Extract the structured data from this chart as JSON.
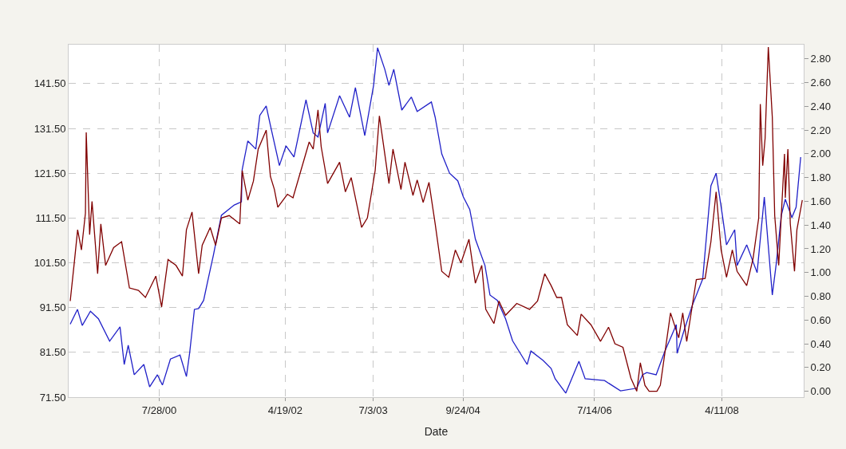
{
  "chart_data": {
    "type": "line",
    "xlabel": "Date",
    "grid": true,
    "marker": "none",
    "line_style": "solid",
    "xlim": [
      "1999-05-02",
      "2009-05-25"
    ],
    "xticks": [
      {
        "value": "2000-07-28",
        "label": "7/28/00"
      },
      {
        "value": "2002-04-19",
        "label": "4/19/02"
      },
      {
        "value": "2003-07-03",
        "label": "7/3/03"
      },
      {
        "value": "2004-09-24",
        "label": "9/24/04"
      },
      {
        "value": "2006-07-14",
        "label": "7/14/06"
      },
      {
        "value": "2008-04-11",
        "label": "4/11/08"
      }
    ],
    "ylim": [
      71.5,
      150.2
    ],
    "yticks": [
      {
        "value": 71.5,
        "label": "71.50"
      },
      {
        "value": 81.5,
        "label": "81.50"
      },
      {
        "value": 91.5,
        "label": "91.50"
      },
      {
        "value": 101.5,
        "label": "101.50"
      },
      {
        "value": 111.5,
        "label": "111.50"
      },
      {
        "value": 121.5,
        "label": "121.50"
      },
      {
        "value": 131.5,
        "label": "131.50"
      },
      {
        "value": 141.5,
        "label": "141.50"
      }
    ],
    "y2lim": [
      -0.05,
      2.92
    ],
    "y2ticks": [
      {
        "value": 0,
        "label": "0.00"
      },
      {
        "value": 0.2,
        "label": "0.20"
      },
      {
        "value": 0.4,
        "label": "0.40"
      },
      {
        "value": 0.6,
        "label": "0.60"
      },
      {
        "value": 0.8,
        "label": "0.80"
      },
      {
        "value": 1.0,
        "label": "1.00"
      },
      {
        "value": 1.2,
        "label": "1.20"
      },
      {
        "value": 1.4,
        "label": "1.40"
      },
      {
        "value": 1.6,
        "label": "1.60"
      },
      {
        "value": 1.8,
        "label": "1.80"
      },
      {
        "value": 2.0,
        "label": "2.00"
      },
      {
        "value": 2.2,
        "label": "2.20"
      },
      {
        "value": 2.4,
        "label": "2.40"
      },
      {
        "value": 2.6,
        "label": "2.60"
      },
      {
        "value": 2.8,
        "label": "2.80"
      }
    ],
    "series": [
      {
        "color": "#2020c8",
        "x": [
          "1999-05-10",
          "1999-06-15",
          "1999-07-09",
          "1999-08-19",
          "1999-09-28",
          "1999-11-23",
          "2000-01-14",
          "2000-02-04",
          "2000-02-24",
          "2000-03-25",
          "2000-05-12",
          "2000-06-10",
          "2000-07-19",
          "2000-08-13",
          "2000-09-22",
          "2000-11-09",
          "2000-12-11",
          "2000-12-27",
          "2001-01-20",
          "2001-02-10",
          "2001-03-07",
          "2001-03-27",
          "2001-04-25",
          "2001-06-04",
          "2001-08-07",
          "2001-09-12",
          "2001-09-16",
          "2001-10-14",
          "2001-11-23",
          "2001-12-13",
          "2002-01-14",
          "2002-02-04",
          "2002-03-21",
          "2002-04-23",
          "2002-06-02",
          "2002-08-01",
          "2002-09-06",
          "2002-09-30",
          "2002-11-05",
          "2002-11-17",
          "2003-01-16",
          "2003-03-07",
          "2003-04-05",
          "2003-05-22",
          "2003-07-05",
          "2003-07-25",
          "2003-08-30",
          "2003-09-20",
          "2003-10-14",
          "2003-11-23",
          "2004-01-10",
          "2004-02-08",
          "2004-04-19",
          "2004-05-08",
          "2004-06-10",
          "2004-07-19",
          "2004-08-29",
          "2004-09-26",
          "2004-10-28",
          "2004-11-25",
          "2005-01-12",
          "2005-02-06",
          "2005-03-15",
          "2005-04-25",
          "2005-05-30",
          "2005-08-11",
          "2005-08-30",
          "2005-10-30",
          "2005-12-09",
          "2005-12-29",
          "2006-02-20",
          "2006-04-27",
          "2006-05-28",
          "2006-09-02",
          "2006-11-21",
          "2007-02-10",
          "2007-03-11",
          "2007-04-01",
          "2007-05-18",
          "2007-07-01",
          "2007-08-27",
          "2007-08-31",
          "2007-10-06",
          "2007-11-15",
          "2008-01-06",
          "2008-02-16",
          "2008-03-13",
          "2008-04-15",
          "2008-05-04",
          "2008-06-14",
          "2008-06-26",
          "2008-08-13",
          "2008-10-04",
          "2008-11-09",
          "2008-12-19",
          "2009-01-08",
          "2009-02-02",
          "2009-02-22",
          "2009-03-27",
          "2009-04-17",
          "2009-05-10"
        ],
        "values": [
          87.8,
          91.1,
          87.5,
          90.7,
          89.0,
          84.0,
          87.2,
          78.8,
          83.1,
          76.5,
          78.8,
          73.8,
          76.5,
          74.2,
          80.0,
          80.9,
          76.1,
          81.3,
          91.1,
          91.3,
          93.1,
          97.3,
          103.2,
          112.1,
          114.4,
          115.1,
          122.3,
          128.7,
          126.9,
          134.4,
          136.5,
          132.2,
          123.2,
          127.6,
          125.1,
          137.9,
          130.5,
          129.6,
          137.1,
          130.5,
          138.8,
          134.0,
          140.6,
          129.9,
          141.1,
          149.5,
          144.7,
          141.1,
          144.7,
          135.6,
          138.5,
          135.3,
          137.4,
          134.0,
          125.8,
          121.5,
          119.8,
          116.2,
          113.4,
          106.8,
          100.9,
          94.3,
          93.1,
          89.0,
          84.1,
          78.8,
          81.8,
          79.7,
          77.9,
          75.6,
          72.4,
          79.5,
          75.6,
          75.2,
          72.9,
          73.5,
          76.5,
          77.0,
          76.5,
          81.8,
          87.7,
          81.3,
          86.6,
          92.0,
          97.9,
          118.7,
          121.5,
          111.6,
          105.5,
          108.9,
          100.9,
          105.5,
          99.3,
          116.2,
          94.3,
          101.4,
          112.1,
          115.7,
          111.6,
          113.9,
          125.1
        ]
      },
      {
        "color": "#800000",
        "axis": "y2",
        "x": [
          "1999-05-10",
          "1999-05-30",
          "1999-06-16",
          "1999-07-05",
          "1999-07-25",
          "1999-07-29",
          "1999-08-15",
          "1999-08-27",
          "1999-09-24",
          "1999-10-10",
          "1999-11-03",
          "1999-12-13",
          "2000-01-22",
          "2000-03-01",
          "2000-04-15",
          "2000-05-20",
          "2000-07-11",
          "2000-08-09",
          "2000-09-10",
          "2000-10-20",
          "2000-11-21",
          "2000-12-11",
          "2001-01-08",
          "2001-02-10",
          "2001-02-28",
          "2001-04-09",
          "2001-05-06",
          "2001-06-04",
          "2001-07-13",
          "2001-09-04",
          "2001-09-16",
          "2001-10-14",
          "2001-11-11",
          "2001-12-05",
          "2002-01-14",
          "2002-02-04",
          "2002-02-24",
          "2002-03-13",
          "2002-04-30",
          "2002-05-28",
          "2002-08-17",
          "2002-09-06",
          "2002-09-30",
          "2002-10-16",
          "2002-11-17",
          "2003-01-16",
          "2003-02-14",
          "2003-03-15",
          "2003-05-06",
          "2003-06-04",
          "2003-07-13",
          "2003-08-03",
          "2003-09-20",
          "2003-10-10",
          "2003-11-19",
          "2003-12-09",
          "2004-01-18",
          "2004-02-08",
          "2004-03-09",
          "2004-04-07",
          "2004-05-08",
          "2004-06-10",
          "2004-07-15",
          "2004-08-17",
          "2004-09-14",
          "2004-10-24",
          "2004-11-25",
          "2004-12-27",
          "2005-01-16",
          "2005-02-26",
          "2005-03-23",
          "2005-04-25",
          "2005-06-20",
          "2005-08-23",
          "2005-10-02",
          "2005-11-07",
          "2005-12-09",
          "2006-01-06",
          "2006-01-30",
          "2006-02-28",
          "2006-04-19",
          "2006-05-08",
          "2006-06-26",
          "2006-08-13",
          "2006-09-22",
          "2006-10-24",
          "2006-12-03",
          "2007-01-12",
          "2007-02-10",
          "2007-02-28",
          "2007-03-23",
          "2007-04-13",
          "2007-05-22",
          "2007-06-08",
          "2007-07-29",
          "2007-09-08",
          "2007-09-28",
          "2007-10-18",
          "2007-12-05",
          "2008-01-18",
          "2008-02-16",
          "2008-03-13",
          "2008-04-07",
          "2008-05-04",
          "2008-06-02",
          "2008-06-26",
          "2008-08-13",
          "2008-09-14",
          "2008-10-12",
          "2008-10-20",
          "2008-11-01",
          "2008-11-13",
          "2008-11-29",
          "2008-12-19",
          "2008-12-31",
          "2009-01-20",
          "2009-02-18",
          "2009-02-22",
          "2009-03-07",
          "2009-03-19",
          "2009-04-09",
          "2009-04-21",
          "2009-05-18"
        ],
        "values": [
          0.76,
          1.08,
          1.36,
          1.19,
          1.5,
          2.18,
          1.32,
          1.6,
          0.99,
          1.41,
          1.06,
          1.21,
          1.26,
          0.87,
          0.85,
          0.79,
          0.97,
          0.71,
          1.11,
          1.06,
          0.97,
          1.36,
          1.51,
          0.99,
          1.23,
          1.38,
          1.23,
          1.46,
          1.48,
          1.41,
          1.86,
          1.61,
          1.77,
          2.04,
          2.2,
          1.81,
          1.7,
          1.55,
          1.66,
          1.63,
          2.1,
          2.04,
          2.37,
          2.06,
          1.75,
          1.93,
          1.68,
          1.8,
          1.38,
          1.46,
          1.86,
          2.32,
          1.75,
          2.04,
          1.7,
          1.93,
          1.65,
          1.78,
          1.59,
          1.76,
          1.41,
          1.01,
          0.96,
          1.19,
          1.08,
          1.28,
          0.91,
          1.06,
          0.69,
          0.57,
          0.76,
          0.64,
          0.74,
          0.69,
          0.76,
          0.99,
          0.89,
          0.79,
          0.79,
          0.56,
          0.47,
          0.65,
          0.56,
          0.42,
          0.54,
          0.4,
          0.37,
          0.11,
          0.0,
          0.24,
          0.05,
          0.0,
          0.0,
          0.05,
          0.66,
          0.45,
          0.66,
          0.42,
          0.94,
          0.95,
          1.26,
          1.68,
          1.19,
          0.96,
          1.19,
          1.01,
          0.89,
          1.12,
          1.46,
          2.42,
          1.9,
          2.13,
          2.9,
          2.31,
          1.48,
          1.06,
          2.0,
          1.63,
          2.04,
          1.41,
          1.01,
          1.36,
          1.61
        ]
      }
    ]
  }
}
